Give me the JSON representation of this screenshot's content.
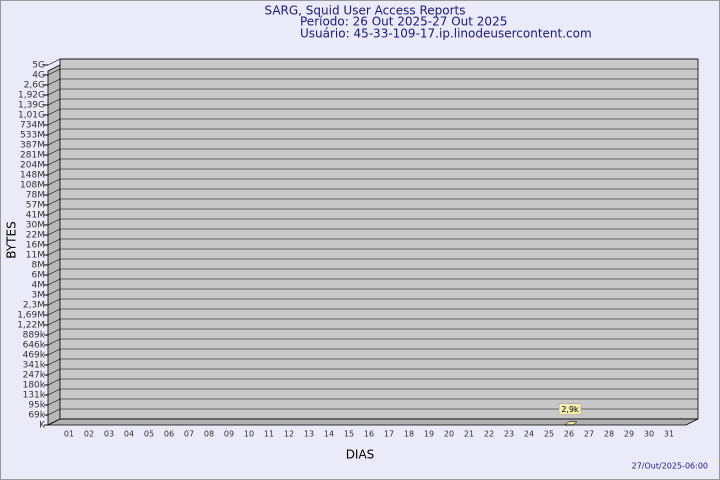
{
  "chart_data": {
    "type": "bar",
    "title": "SARG, Squid User Access Reports",
    "subtitle": "Período: 26 Out 2025-27 Out 2025",
    "user": "Usuário: 45-33-109-17.ip.linodeusercontent.com",
    "y_label": "BYTES",
    "x_label": "DIAS",
    "footer": "27/Out/2025-06:00",
    "color": "#f0e68c",
    "grid": true,
    "categories": [
      "01",
      "02",
      "03",
      "04",
      "05",
      "06",
      "07",
      "08",
      "09",
      "10",
      "11",
      "12",
      "13",
      "14",
      "15",
      "16",
      "17",
      "18",
      "19",
      "20",
      "21",
      "22",
      "23",
      "24",
      "25",
      "26",
      "27",
      "28",
      "29",
      "30",
      "31"
    ],
    "values": [
      null,
      null,
      null,
      null,
      null,
      null,
      null,
      null,
      null,
      null,
      null,
      null,
      null,
      null,
      null,
      null,
      null,
      null,
      null,
      null,
      null,
      null,
      null,
      null,
      null,
      2900,
      null,
      null,
      null,
      null,
      null
    ],
    "value_labels": [
      null,
      null,
      null,
      null,
      null,
      null,
      null,
      null,
      null,
      null,
      null,
      null,
      null,
      null,
      null,
      null,
      null,
      null,
      null,
      null,
      null,
      null,
      null,
      null,
      null,
      "2,9k",
      null,
      null,
      null,
      null,
      null
    ],
    "ylim": [
      1000,
      5000000000
    ],
    "yticks": [
      {
        "value": 5000000000,
        "label": "5G"
      },
      {
        "value": 4000000000,
        "label": "4G"
      },
      {
        "value": 2600000000,
        "label": "2,6G"
      },
      {
        "value": 1920000000,
        "label": "1,92G"
      },
      {
        "value": 1390000000,
        "label": "1,39G"
      },
      {
        "value": 1010000000,
        "label": "1,01G"
      },
      {
        "value": 734000000,
        "label": "734M"
      },
      {
        "value": 533000000,
        "label": "533M"
      },
      {
        "value": 387000000,
        "label": "387M"
      },
      {
        "value": 281000000,
        "label": "281M"
      },
      {
        "value": 204000000,
        "label": "204M"
      },
      {
        "value": 148000000,
        "label": "148M"
      },
      {
        "value": 108000000,
        "label": "108M"
      },
      {
        "value": 78000000,
        "label": "78M"
      },
      {
        "value": 57000000,
        "label": "57M"
      },
      {
        "value": 41000000,
        "label": "41M"
      },
      {
        "value": 30000000,
        "label": "30M"
      },
      {
        "value": 22000000,
        "label": "22M"
      },
      {
        "value": 16000000,
        "label": "16M"
      },
      {
        "value": 11000000,
        "label": "11M"
      },
      {
        "value": 8000000,
        "label": "8M"
      },
      {
        "value": 6000000,
        "label": "6M"
      },
      {
        "value": 4000000,
        "label": "4M"
      },
      {
        "value": 3000000,
        "label": "3M"
      },
      {
        "value": 2300000,
        "label": "2,3M"
      },
      {
        "value": 1690000,
        "label": "1,69M"
      },
      {
        "value": 1220000,
        "label": "1,22M"
      },
      {
        "value": 889000,
        "label": "889k"
      },
      {
        "value": 646000,
        "label": "646k"
      },
      {
        "value": 469000,
        "label": "469k"
      },
      {
        "value": 341000,
        "label": "341k"
      },
      {
        "value": 247000,
        "label": "247k"
      },
      {
        "value": 180000,
        "label": "180k"
      },
      {
        "value": 131000,
        "label": "131k"
      },
      {
        "value": 95000,
        "label": "95k"
      },
      {
        "value": 69000,
        "label": "69k"
      },
      {
        "value": 1000,
        "label": "K"
      }
    ]
  }
}
